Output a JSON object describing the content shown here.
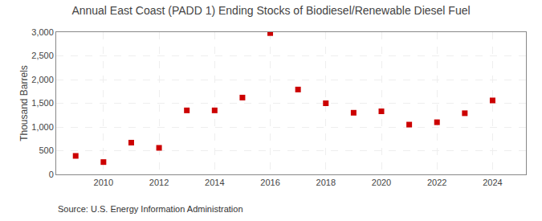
{
  "chart_data": {
    "type": "scatter",
    "title": "Annual East Coast (PADD 1) Ending Stocks of Biodiesel/Renewable Diesel Fuel",
    "y_label": "Thousand Barrels",
    "annotations": [
      "Source: U.S. Energy Information Administration"
    ],
    "x": [
      2009,
      2010,
      2011,
      2012,
      2013,
      2014,
      2015,
      2016,
      2017,
      2018,
      2019,
      2020,
      2021,
      2022,
      2023,
      2024
    ],
    "values": [
      390,
      260,
      670,
      560,
      1350,
      1350,
      1620,
      2980,
      1790,
      1500,
      1300,
      1330,
      1050,
      1100,
      1290,
      1560
    ],
    "color": "#cc0000",
    "marker": "square",
    "xlim": [
      2008.3,
      2025.2
    ],
    "xticks": [
      2010,
      2012,
      2014,
      2016,
      2018,
      2020,
      2022,
      2024
    ],
    "ylim": [
      0,
      3000
    ],
    "yticks": [
      0,
      500,
      {
        "value": 1000,
        "label": "1,000"
      },
      {
        "value": 1500,
        "label": "1,500"
      },
      {
        "value": 2000,
        "label": "2,000"
      },
      {
        "value": 2500,
        "label": "2,500"
      },
      {
        "value": 3000,
        "label": "3,000"
      }
    ],
    "grid": true
  }
}
